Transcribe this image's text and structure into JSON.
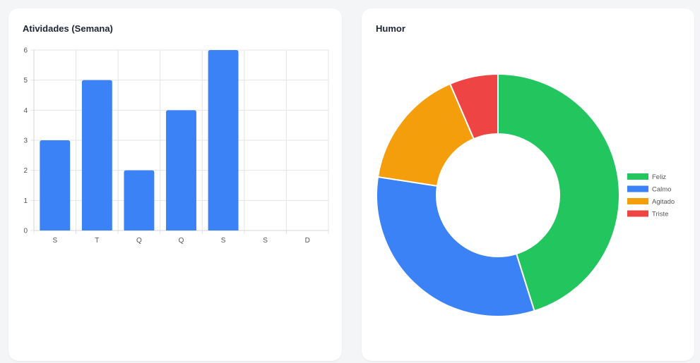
{
  "cards": {
    "activities": {
      "title": "Atividades (Semana)"
    },
    "mood": {
      "title": "Humor"
    }
  },
  "chart_data": [
    {
      "type": "bar",
      "title": "Atividades (Semana)",
      "categories": [
        "S",
        "T",
        "Q",
        "Q",
        "S",
        "S",
        "D"
      ],
      "values": [
        3,
        5,
        2,
        4,
        6,
        0,
        0
      ],
      "ylim": [
        0,
        6
      ],
      "yticks": [
        0,
        1,
        2,
        3,
        4,
        5,
        6
      ],
      "grid": true,
      "color": "#3b82f6"
    },
    {
      "type": "pie",
      "variant": "doughnut",
      "title": "Humor",
      "labels": [
        "Feliz",
        "Calmo",
        "Agitado",
        "Triste"
      ],
      "values": [
        7,
        5,
        2.5,
        1
      ],
      "colors": [
        "#22c55e",
        "#3b82f6",
        "#f59e0b",
        "#ef4444"
      ],
      "legend": "right"
    }
  ]
}
